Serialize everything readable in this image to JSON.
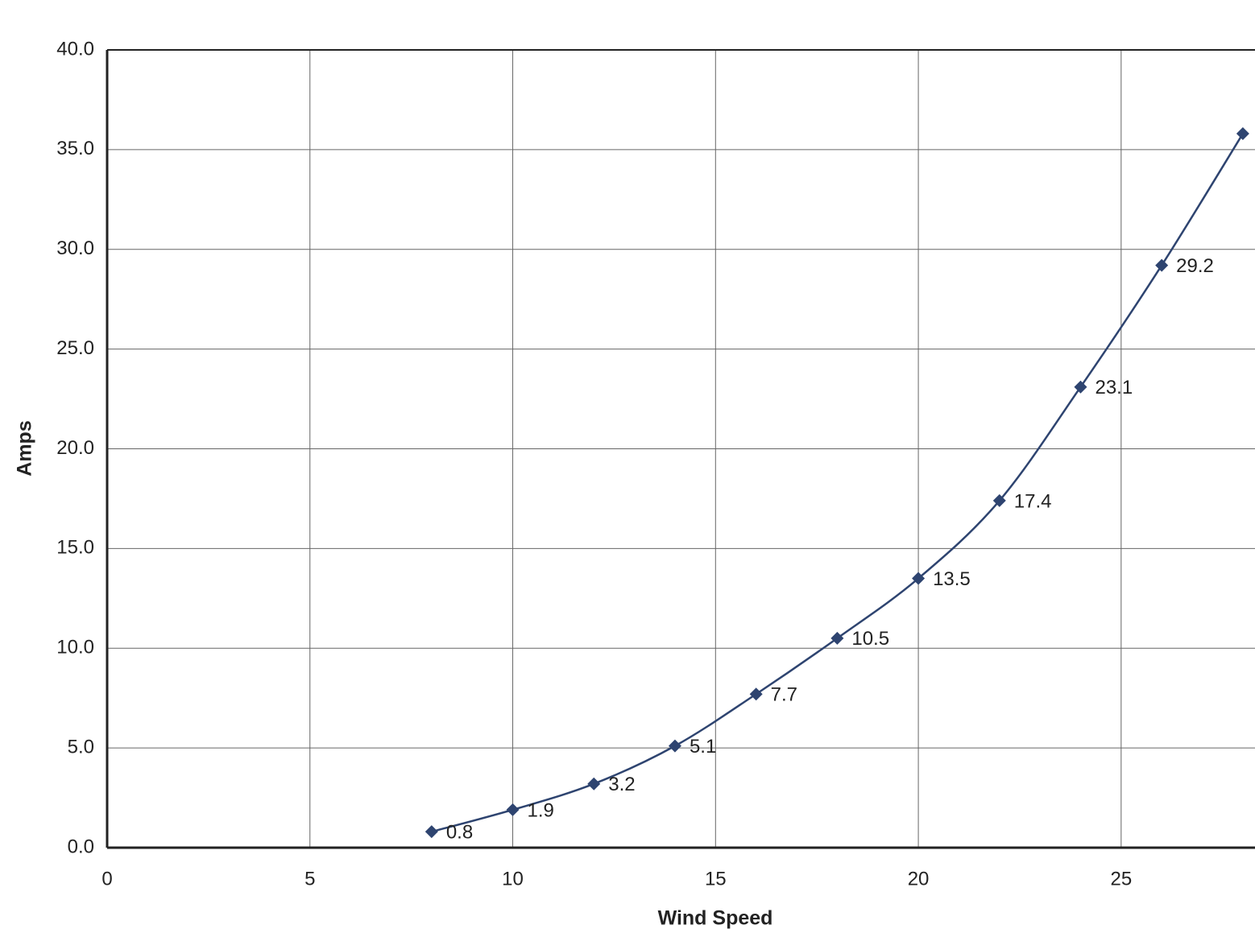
{
  "chart_data": {
    "type": "line",
    "x": [
      8,
      10,
      12,
      14,
      16,
      18,
      20,
      22,
      24,
      26,
      28
    ],
    "values": [
      0.8,
      1.9,
      3.2,
      5.1,
      7.7,
      10.5,
      13.5,
      17.4,
      23.1,
      29.2,
      35.8
    ],
    "value_labels": [
      "0.8",
      "1.9",
      "3.2",
      "5.1",
      "7.7",
      "10.5",
      "13.5",
      "17.4",
      "23.1",
      "29.2",
      null
    ],
    "color": "#2e4470",
    "xlabel": "Wind Speed",
    "ylabel": "Amps",
    "xlim": [
      0,
      28.3
    ],
    "xticks": [
      0,
      5,
      10,
      15,
      20,
      25
    ],
    "ylim": [
      0,
      40
    ],
    "yticks": [
      {
        "value": 0,
        "label": "0.0"
      },
      {
        "value": 5,
        "label": "5.0"
      },
      {
        "value": 10,
        "label": "10.0"
      },
      {
        "value": 15,
        "label": "15.0"
      },
      {
        "value": 20,
        "label": "20.0"
      },
      {
        "value": 25,
        "label": "25.0"
      },
      {
        "value": 30,
        "label": "30.0"
      },
      {
        "value": 35,
        "label": "35.0"
      },
      {
        "value": 40,
        "label": "40.0"
      }
    ],
    "grid": true
  }
}
